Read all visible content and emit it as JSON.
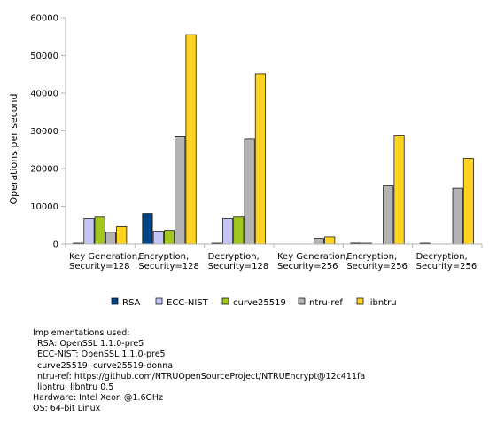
{
  "chart_data": {
    "type": "bar",
    "title": "",
    "xlabel": "",
    "ylabel": "Operations per second",
    "ylim": [
      0,
      60000
    ],
    "yticks": [
      0,
      10000,
      20000,
      30000,
      40000,
      50000,
      60000
    ],
    "grid": false,
    "legend_position": "bottom",
    "categories": [
      [
        "Key Generation,",
        "Security=128"
      ],
      [
        "Encryption,",
        "Security=128"
      ],
      [
        "Decryption,",
        "Security=128"
      ],
      [
        "Key Generation,",
        "Security=256"
      ],
      [
        "Encryption,",
        "Security=256"
      ],
      [
        "Decryption,",
        "Security=256"
      ]
    ],
    "series": [
      {
        "name": "RSA",
        "color": "#004586",
        "values": [
          30,
          8100,
          50,
          0,
          250,
          50
        ]
      },
      {
        "name": "ECC-NIST",
        "color": "#c5c5f5",
        "values": [
          6700,
          3400,
          6700,
          0,
          60,
          0
        ]
      },
      {
        "name": "curve25519",
        "color": "#a0c81e",
        "values": [
          7100,
          3600,
          7100,
          0,
          0,
          0
        ]
      },
      {
        "name": "ntru-ref",
        "color": "#b3b3b3",
        "values": [
          3100,
          28600,
          27800,
          1500,
          15400,
          14800
        ]
      },
      {
        "name": "libntru",
        "color": "#ffd320",
        "values": [
          4600,
          55500,
          45200,
          1900,
          28800,
          22700
        ]
      }
    ]
  },
  "notes": {
    "heading": "Implementations used:",
    "impl_lines": [
      "RSA: OpenSSL 1.1.0-pre5",
      "ECC-NIST: OpenSSL 1.1.0-pre5",
      "curve25519: curve25519-donna",
      "ntru-ref: https://github.com/NTRUOpenSourceProject/NTRUEncrypt@12c411fa",
      "libntru: libntru 0.5"
    ],
    "hardware": "Hardware: Intel Xeon @1.6GHz",
    "os": "OS: 64-bit Linux"
  }
}
